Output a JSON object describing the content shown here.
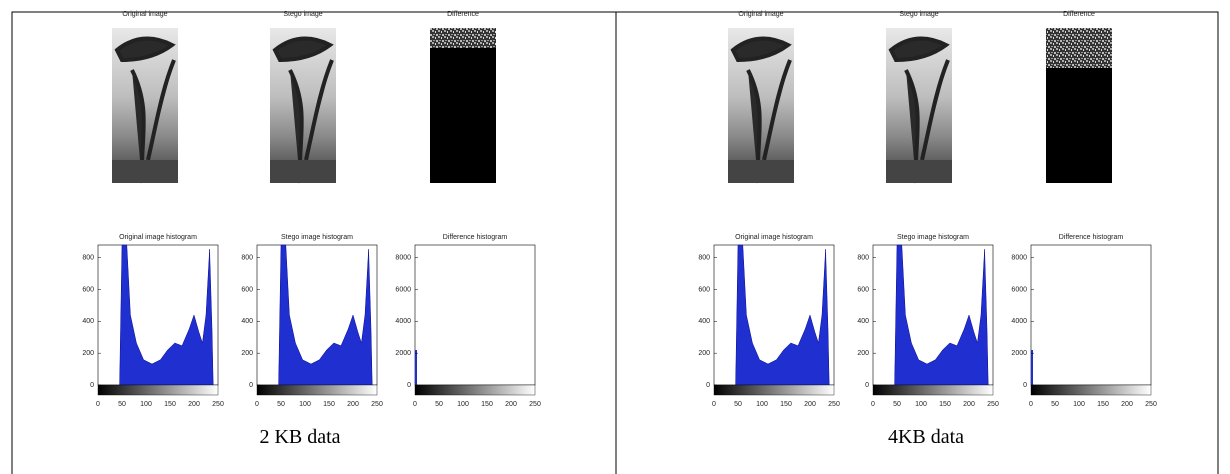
{
  "panels": [
    {
      "image_titles": [
        "Original image",
        "Stego image",
        "Difference"
      ],
      "histograms": [
        {
          "title": "Original image histogram",
          "xticks": [
            0,
            50,
            100,
            150,
            200,
            250
          ],
          "yticks": [
            0,
            200,
            400,
            600,
            800
          ]
        },
        {
          "title": "Stego  image histogram",
          "xticks": [
            0,
            50,
            100,
            150,
            200,
            250
          ],
          "yticks": [
            0,
            200,
            400,
            600,
            800
          ]
        },
        {
          "title": "Difference histogram",
          "xticks": [
            0,
            50,
            100,
            150,
            200,
            250
          ],
          "yticks": [
            0,
            2000,
            4000,
            6000,
            8000
          ]
        }
      ],
      "caption": "2 KB data"
    },
    {
      "image_titles": [
        "Original image",
        "Stego image",
        "Difference"
      ],
      "histograms": [
        {
          "title": "Original image histogram",
          "xticks": [
            0,
            50,
            100,
            150,
            200,
            250
          ],
          "yticks": [
            0,
            200,
            400,
            600,
            800
          ]
        },
        {
          "title": "Stego  image histogram",
          "xticks": [
            0,
            50,
            100,
            150,
            200,
            250
          ],
          "yticks": [
            0,
            200,
            400,
            600,
            800
          ]
        },
        {
          "title": "Difference histogram",
          "xticks": [
            0,
            50,
            100,
            150,
            200,
            250
          ],
          "yticks": [
            0,
            2000,
            4000,
            6000,
            8000
          ]
        }
      ],
      "caption": "4KB data"
    }
  ]
}
